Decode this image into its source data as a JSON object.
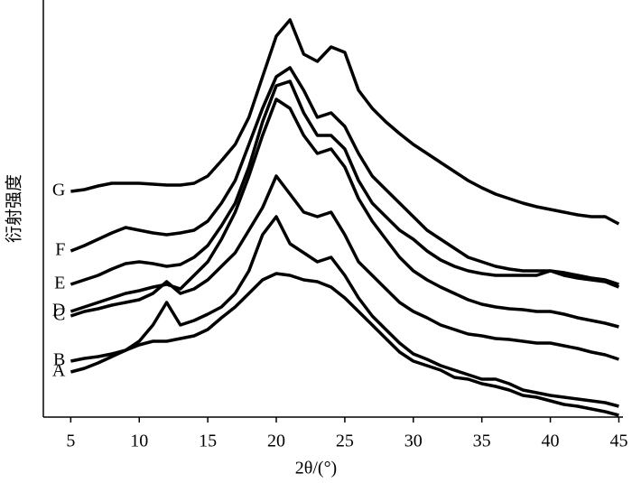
{
  "chart_data": {
    "type": "line",
    "x_label": "2θ/(°)",
    "y_label": "衍射强度",
    "xlim": [
      3,
      45.3
    ],
    "ylim": [
      0,
      462
    ],
    "xticks": [
      5,
      10,
      15,
      20,
      25,
      30,
      35,
      40,
      45
    ],
    "x": [
      5,
      6,
      7,
      8,
      9,
      10,
      11,
      12,
      13,
      14,
      15,
      16,
      17,
      18,
      19,
      20,
      21,
      22,
      23,
      24,
      25,
      26,
      27,
      28,
      29,
      30,
      31,
      32,
      33,
      34,
      35,
      36,
      37,
      38,
      39,
      40,
      41,
      42,
      43,
      44,
      45
    ],
    "series": [
      {
        "name": "A",
        "color": "#000000",
        "values": [
          50,
          54,
          60,
          67,
          74,
          80,
          84,
          84,
          87,
          90,
          97,
          110,
          122,
          137,
          152,
          159,
          157,
          152,
          150,
          144,
          132,
          117,
          102,
          87,
          72,
          62,
          57,
          52,
          44,
          42,
          37,
          34,
          30,
          24,
          22,
          18,
          14,
          12,
          9,
          6,
          2
        ]
      },
      {
        "name": "B",
        "color": "#000000",
        "values": [
          62,
          65,
          67,
          70,
          74,
          84,
          102,
          127,
          102,
          107,
          114,
          122,
          137,
          162,
          202,
          222,
          192,
          182,
          172,
          177,
          157,
          132,
          112,
          97,
          82,
          70,
          64,
          57,
          52,
          47,
          42,
          42,
          37,
          30,
          27,
          24,
          22,
          20,
          18,
          16,
          12
        ]
      },
      {
        "name": "C",
        "color": "#000000",
        "values": [
          112,
          117,
          120,
          124,
          127,
          130,
          137,
          150,
          137,
          142,
          152,
          167,
          182,
          207,
          232,
          267,
          247,
          227,
          222,
          227,
          202,
          172,
          157,
          142,
          127,
          117,
          110,
          102,
          97,
          92,
          90,
          87,
          86,
          84,
          82,
          82,
          79,
          76,
          72,
          69,
          64
        ]
      },
      {
        "name": "D",
        "color": "#000000",
        "values": [
          117,
          122,
          127,
          132,
          137,
          140,
          144,
          147,
          142,
          157,
          172,
          197,
          227,
          267,
          312,
          352,
          342,
          312,
          292,
          297,
          277,
          242,
          217,
          197,
          177,
          162,
          152,
          144,
          137,
          130,
          125,
          122,
          120,
          119,
          117,
          117,
          114,
          110,
          107,
          104,
          100
        ]
      },
      {
        "name": "E",
        "color": "#000000",
        "values": [
          147,
          152,
          157,
          164,
          170,
          172,
          170,
          167,
          169,
          177,
          190,
          212,
          237,
          277,
          327,
          367,
          372,
          337,
          312,
          312,
          297,
          262,
          237,
          222,
          207,
          197,
          184,
          174,
          167,
          162,
          159,
          157,
          157,
          157,
          157,
          162,
          157,
          154,
          152,
          150,
          144
        ]
      },
      {
        "name": "F",
        "color": "#000000",
        "values": [
          184,
          190,
          197,
          204,
          210,
          207,
          204,
          202,
          204,
          207,
          217,
          237,
          262,
          302,
          342,
          377,
          387,
          362,
          332,
          337,
          322,
          292,
          267,
          252,
          237,
          222,
          207,
          197,
          187,
          177,
          172,
          167,
          164,
          162,
          162,
          162,
          160,
          157,
          154,
          152,
          147
        ]
      },
      {
        "name": "G",
        "color": "#000000",
        "values": [
          250,
          252,
          256,
          259,
          259,
          259,
          258,
          257,
          257,
          259,
          267,
          284,
          302,
          332,
          377,
          422,
          440,
          402,
          394,
          410,
          404,
          362,
          342,
          327,
          314,
          302,
          292,
          282,
          272,
          262,
          254,
          247,
          242,
          237,
          233,
          230,
          227,
          224,
          222,
          222,
          214
        ]
      }
    ]
  }
}
